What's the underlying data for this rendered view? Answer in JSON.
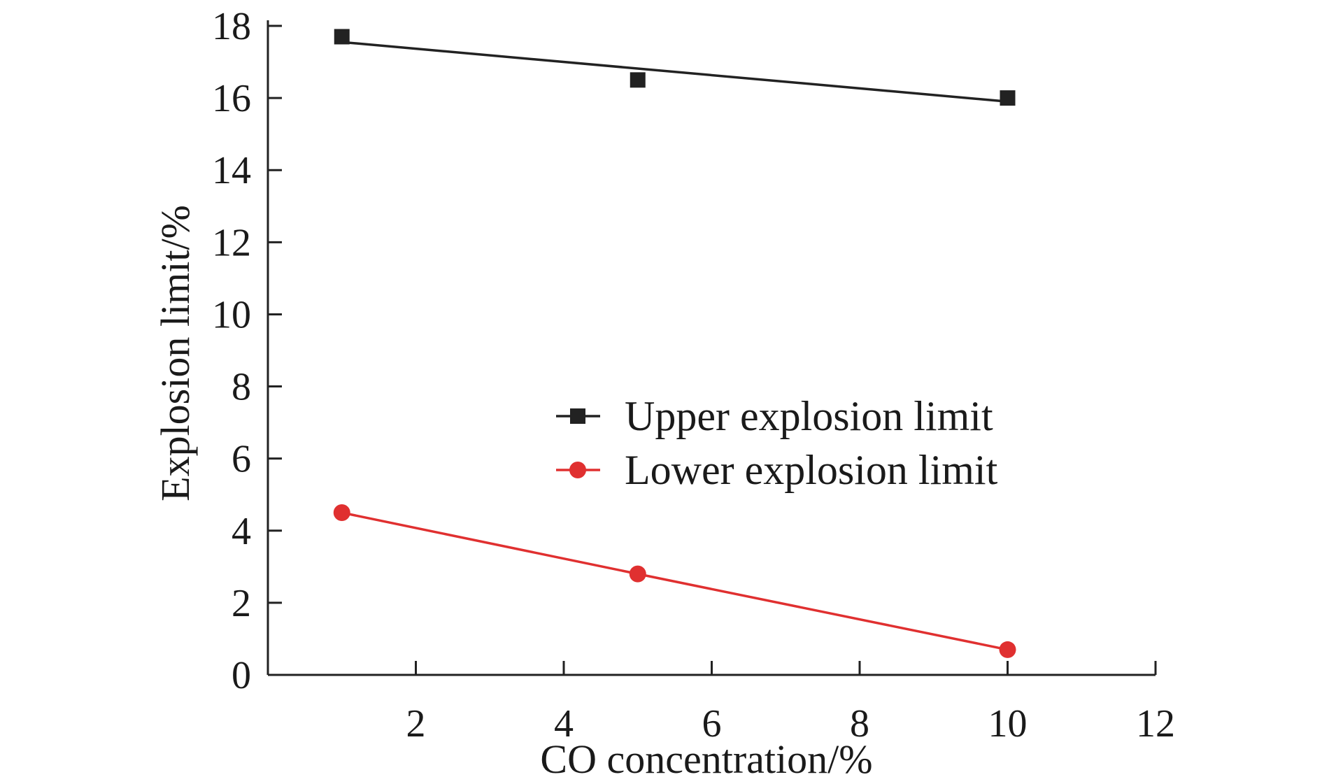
{
  "chart_data": {
    "type": "line",
    "title": "",
    "xlabel": "CO concentration/%",
    "ylabel": "Explosion limit/%",
    "xlim": [
      0,
      12
    ],
    "ylim": [
      0,
      18
    ],
    "xticks": [
      2,
      4,
      6,
      8,
      10,
      12
    ],
    "yticks": [
      0,
      2,
      4,
      6,
      8,
      10,
      12,
      14,
      16,
      18
    ],
    "grid": false,
    "legend_position": "center-right",
    "series": [
      {
        "name": "Upper explosion limit",
        "marker": "square",
        "color": "#222222",
        "points": [
          {
            "x": 1,
            "y": 17.7
          },
          {
            "x": 5,
            "y": 16.5
          },
          {
            "x": 10,
            "y": 16.0
          }
        ],
        "fit": [
          {
            "x": 1,
            "y": 17.55
          },
          {
            "x": 10,
            "y": 15.9
          }
        ]
      },
      {
        "name": "Lower explosion limit",
        "marker": "circle",
        "color": "#e03030",
        "points": [
          {
            "x": 1,
            "y": 4.5
          },
          {
            "x": 5,
            "y": 2.8
          },
          {
            "x": 10,
            "y": 0.7
          }
        ],
        "fit": [
          {
            "x": 1,
            "y": 4.5
          },
          {
            "x": 5,
            "y": 2.8
          },
          {
            "x": 10,
            "y": 0.7
          }
        ]
      }
    ]
  }
}
